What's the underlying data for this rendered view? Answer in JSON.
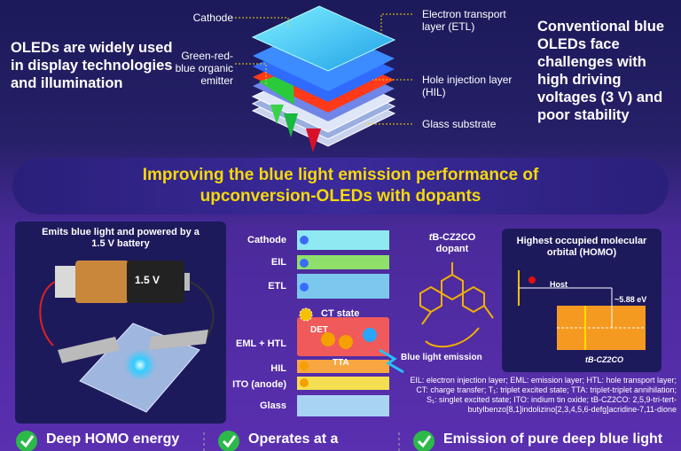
{
  "top": {
    "left_text": "OLEDs are widely used in display technologies and illumination",
    "right_text": "Conventional blue OLEDs face challenges with high driving voltages (3 V) and poor stability",
    "labels": [
      "Cathode",
      "Green-red-blue organic emitter",
      "Electron transport layer (ETL)",
      "Hole injection layer (HIL)",
      "Glass substrate"
    ]
  },
  "banner": "Improving the blue light emission performance of upconversion-OLEDs with dopants",
  "battery": {
    "caption": "Emits blue light and powered by a 1.5 V battery",
    "voltage": "1.5 V"
  },
  "stack": {
    "layers": [
      "Cathode",
      "EIL",
      "ETL",
      "EML + HTL",
      "HIL",
      "ITO (anode)",
      "Glass"
    ],
    "ct_state": "CT state",
    "det": "DET",
    "tta": "TTA"
  },
  "dopant": {
    "italic": "t",
    "name": "B-CZ2CO",
    "line2": "dopant",
    "emission": "Blue light emission"
  },
  "homo": {
    "title": "Highest occupied molecular orbital (HOMO)",
    "host": "Host",
    "energy": "~5.88 eV",
    "dopant": "tB-CZ2CO"
  },
  "footnote": "EIL: electron injection layer; EML: emission layer; HTL: hole transport layer; CT: charge transfer; T₁: triplet excited state; TTA: triplet-triplet annihilation; S₁: singlet excited state; ITO: indium tin oxide; tB-CZ2CO: 2,5,9-tri-tert-butylbenzo[8,1]indolizino[2,3,4,5,6-defg]acridine-7,11-dione",
  "bottom": [
    "Deep HOMO energy",
    "Operates at a",
    "Emission of pure deep blue light"
  ]
}
